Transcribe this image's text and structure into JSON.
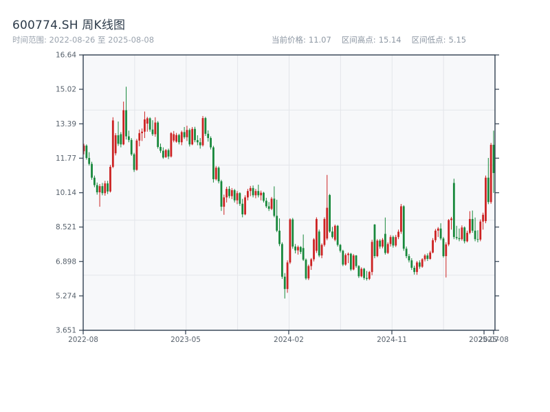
{
  "header": {
    "title": "600774.SH 周K线图",
    "subtitle": "时间范围: 2022-08-26 至 2025-08-08",
    "stats": [
      {
        "label": "当前价格:",
        "value": "11.07"
      },
      {
        "label": "区间高点:",
        "value": "15.14"
      },
      {
        "label": "区间低点:",
        "value": "5.15"
      }
    ]
  },
  "chart_data": {
    "type": "candlestick",
    "title": "600774.SH 周K线图",
    "symbol": "600774.SH",
    "frequency": "weekly",
    "date_range": {
      "start": "2022-08-26",
      "end": "2025-08-08"
    },
    "current_price": 11.07,
    "range_high": 15.14,
    "range_low": 5.15,
    "ylim": [
      3.651,
      16.64
    ],
    "y_ticks": [
      "16.64",
      "15.02",
      "13.39",
      "11.77",
      "10.14",
      "8.521",
      "6.898",
      "5.274",
      "3.651"
    ],
    "x_ticks": [
      {
        "label": "2022-08",
        "pos": 0.0
      },
      {
        "label": "2023-05",
        "pos": 0.2496
      },
      {
        "label": "2024-02",
        "pos": 0.5008
      },
      {
        "label": "2024-11",
        "pos": 0.7521
      },
      {
        "label": "2025-07",
        "pos": 0.9766
      },
      {
        "label": "2025-08",
        "pos": 1.0
      }
    ],
    "grid": {
      "v_divisions": 8,
      "h_divisions": 5,
      "shown": true
    },
    "colors": {
      "up": "#cc2222",
      "down": "#17883b",
      "border": "#2e3d4e",
      "grid": "#e3e5ea",
      "plot_bg": "#f7f8fa",
      "tick_label": "#57616c"
    },
    "ohlc_note": "weekly bars [open, high, low, close], up weeks drawn red, down weeks drawn green (CN convention)",
    "ohlc": [
      [
        12.1,
        12.45,
        11.95,
        12.36
      ],
      [
        12.36,
        12.42,
        11.7,
        11.78
      ],
      [
        11.78,
        12.05,
        11.42,
        11.5
      ],
      [
        11.5,
        11.6,
        10.75,
        10.85
      ],
      [
        10.85,
        10.95,
        10.4,
        10.5
      ],
      [
        10.5,
        10.62,
        10.05,
        10.16
      ],
      [
        10.16,
        10.55,
        9.48,
        10.45
      ],
      [
        10.45,
        10.6,
        10.02,
        10.12
      ],
      [
        10.12,
        10.7,
        10.0,
        10.58
      ],
      [
        10.58,
        10.7,
        10.08,
        10.2
      ],
      [
        10.2,
        11.45,
        10.15,
        11.36
      ],
      [
        11.36,
        13.7,
        11.3,
        13.55
      ],
      [
        12.0,
        12.95,
        11.9,
        12.85
      ],
      [
        12.85,
        13.5,
        12.35,
        12.45
      ],
      [
        12.9,
        13.0,
        12.28,
        12.42
      ],
      [
        12.42,
        14.44,
        12.38,
        14.03
      ],
      [
        14.03,
        15.14,
        12.65,
        12.8
      ],
      [
        12.8,
        13.07,
        12.52,
        12.63
      ],
      [
        12.63,
        12.72,
        11.88,
        11.95
      ],
      [
        11.95,
        12.02,
        11.12,
        11.22
      ],
      [
        11.22,
        12.68,
        11.18,
        12.6
      ],
      [
        12.6,
        13.12,
        12.33,
        12.95
      ],
      [
        12.95,
        13.17,
        12.58,
        13.02
      ],
      [
        13.02,
        13.97,
        12.72,
        13.6
      ],
      [
        13.4,
        13.72,
        13.02,
        13.65
      ],
      [
        13.65,
        13.7,
        13.02,
        13.12
      ],
      [
        13.12,
        13.56,
        12.82,
        12.9
      ],
      [
        12.9,
        13.7,
        12.78,
        13.45
      ],
      [
        13.45,
        13.52,
        12.22,
        12.3
      ],
      [
        12.3,
        12.46,
        12.02,
        12.12
      ],
      [
        12.12,
        12.28,
        11.74,
        11.8
      ],
      [
        11.82,
        12.2,
        11.78,
        12.15
      ],
      [
        12.15,
        12.22,
        11.73,
        11.85
      ],
      [
        11.85,
        13.0,
        11.8,
        12.95
      ],
      [
        12.6,
        13.05,
        12.52,
        12.9
      ],
      [
        12.55,
        12.96,
        12.5,
        12.86
      ],
      [
        12.86,
        12.92,
        12.42,
        12.52
      ],
      [
        12.52,
        13.07,
        12.38,
        13.0
      ],
      [
        13.0,
        13.24,
        12.68,
        12.76
      ],
      [
        12.76,
        13.3,
        12.58,
        13.1
      ],
      [
        13.1,
        13.18,
        12.32,
        12.42
      ],
      [
        12.42,
        13.24,
        12.38,
        13.15
      ],
      [
        13.15,
        13.25,
        12.52,
        12.62
      ],
      [
        12.62,
        12.85,
        12.38,
        12.52
      ],
      [
        12.52,
        12.72,
        12.22,
        12.38
      ],
      [
        12.38,
        13.76,
        12.32,
        13.66
      ],
      [
        13.66,
        13.72,
        12.82,
        12.92
      ],
      [
        12.92,
        13.08,
        12.55,
        12.72
      ],
      [
        12.72,
        12.8,
        12.18,
        12.28
      ],
      [
        12.28,
        12.35,
        10.62,
        10.78
      ],
      [
        10.78,
        11.4,
        10.72,
        11.32
      ],
      [
        11.32,
        11.38,
        10.58,
        10.68
      ],
      [
        10.68,
        10.75,
        9.28,
        9.48
      ],
      [
        9.48,
        10.05,
        9.1,
        9.92
      ],
      [
        9.92,
        10.42,
        9.68,
        10.32
      ],
      [
        10.32,
        10.45,
        9.88,
        9.98
      ],
      [
        9.98,
        10.36,
        9.84,
        10.26
      ],
      [
        10.26,
        10.32,
        9.68,
        9.78
      ],
      [
        9.78,
        10.22,
        9.6,
        10.12
      ],
      [
        10.12,
        10.16,
        9.52,
        9.62
      ],
      [
        9.62,
        9.85,
        8.98,
        9.12
      ],
      [
        9.12,
        10.02,
        9.08,
        9.92
      ],
      [
        9.92,
        10.32,
        9.78,
        10.22
      ],
      [
        10.22,
        10.46,
        9.98,
        10.36
      ],
      [
        10.36,
        10.48,
        9.92,
        10.02
      ],
      [
        10.02,
        10.32,
        9.88,
        10.22
      ],
      [
        10.22,
        10.52,
        9.92,
        10.02
      ],
      [
        10.02,
        10.24,
        9.78,
        10.14
      ],
      [
        10.14,
        10.18,
        9.68,
        9.76
      ],
      [
        9.76,
        9.9,
        9.42,
        9.5
      ],
      [
        9.5,
        9.7,
        9.28,
        9.38
      ],
      [
        9.38,
        9.94,
        9.32,
        9.86
      ],
      [
        9.86,
        10.44,
        8.98,
        9.05
      ],
      [
        9.05,
        9.81,
        8.28,
        8.35
      ],
      [
        8.35,
        8.93,
        7.62,
        7.72
      ],
      [
        7.72,
        7.8,
        6.08,
        6.18
      ],
      [
        6.18,
        6.35,
        5.15,
        5.6
      ],
      [
        5.6,
        6.95,
        5.42,
        6.85
      ],
      [
        6.85,
        8.93,
        6.78,
        8.88
      ],
      [
        8.88,
        8.95,
        7.5,
        7.6
      ],
      [
        7.6,
        7.72,
        7.28,
        7.42
      ],
      [
        7.42,
        7.65,
        7.22,
        7.58
      ],
      [
        7.58,
        7.62,
        7.25,
        7.35
      ],
      [
        7.53,
        8.17,
        6.92,
        6.98
      ],
      [
        6.98,
        7.04,
        6.03,
        6.1
      ],
      [
        6.1,
        6.75,
        6.02,
        6.68
      ],
      [
        6.68,
        7.06,
        6.5,
        7.0
      ],
      [
        7.0,
        8.0,
        6.9,
        7.94
      ],
      [
        7.4,
        8.98,
        7.3,
        8.9
      ],
      [
        8.31,
        8.4,
        7.1,
        7.18
      ],
      [
        7.18,
        7.75,
        7.05,
        7.68
      ],
      [
        7.68,
        8.98,
        7.6,
        8.9
      ],
      [
        7.98,
        10.98,
        7.9,
        9.43
      ],
      [
        10.03,
        10.08,
        8.25,
        8.31
      ],
      [
        8.31,
        8.53,
        7.98,
        8.05
      ],
      [
        7.92,
        8.64,
        7.85,
        8.58
      ],
      [
        8.58,
        8.62,
        7.6,
        7.68
      ],
      [
        7.68,
        7.72,
        7.32,
        7.4
      ],
      [
        7.4,
        7.45,
        6.68,
        6.75
      ],
      [
        6.75,
        7.28,
        6.7,
        7.2
      ],
      [
        7.2,
        7.32,
        6.82,
        7.26
      ],
      [
        7.26,
        7.3,
        6.45,
        6.52
      ],
      [
        6.52,
        7.25,
        6.48,
        7.18
      ],
      [
        7.18,
        7.2,
        6.6,
        6.68
      ],
      [
        6.68,
        6.72,
        6.12,
        6.2
      ],
      [
        6.2,
        6.62,
        6.15,
        6.55
      ],
      [
        6.55,
        6.6,
        6.03,
        6.12
      ],
      [
        6.12,
        6.45,
        6.0,
        6.08
      ],
      [
        6.08,
        6.45,
        6.02,
        6.4
      ],
      [
        6.4,
        7.92,
        6.25,
        7.82
      ],
      [
        8.64,
        8.66,
        7.05,
        7.15
      ],
      [
        7.15,
        7.95,
        7.1,
        7.88
      ],
      [
        7.88,
        7.95,
        7.5,
        7.6
      ],
      [
        7.6,
        8.0,
        7.52,
        7.92
      ],
      [
        8.2,
        8.97,
        7.22,
        7.3
      ],
      [
        7.3,
        7.8,
        7.25,
        7.72
      ],
      [
        7.72,
        8.14,
        7.6,
        8.05
      ],
      [
        8.05,
        8.12,
        7.55,
        7.65
      ],
      [
        7.65,
        8.15,
        7.58,
        8.05
      ],
      [
        8.05,
        8.4,
        7.95,
        8.3
      ],
      [
        8.3,
        9.61,
        8.2,
        9.5
      ],
      [
        9.5,
        9.55,
        7.4,
        7.5
      ],
      [
        7.5,
        7.6,
        7.05,
        7.15
      ],
      [
        7.15,
        7.25,
        6.85,
        6.95
      ],
      [
        6.95,
        7.05,
        6.5,
        6.6
      ],
      [
        6.6,
        6.7,
        6.28,
        6.4
      ],
      [
        6.4,
        6.92,
        6.27,
        6.85
      ],
      [
        6.85,
        6.95,
        6.55,
        6.65
      ],
      [
        6.65,
        7.05,
        6.6,
        7.0
      ],
      [
        7.0,
        7.25,
        6.9,
        7.18
      ],
      [
        7.18,
        7.28,
        6.92,
        7.02
      ],
      [
        7.02,
        7.4,
        6.98,
        7.32
      ],
      [
        7.32,
        8.0,
        7.28,
        7.9
      ],
      [
        7.9,
        8.43,
        7.8,
        8.35
      ],
      [
        8.35,
        8.52,
        8.05,
        8.45
      ],
      [
        8.45,
        8.7,
        7.9,
        7.98
      ],
      [
        7.98,
        8.05,
        7.08,
        7.15
      ],
      [
        7.15,
        7.8,
        6.14,
        7.7
      ],
      [
        7.7,
        8.9,
        7.62,
        8.85
      ],
      [
        8.85,
        9.0,
        8.4,
        8.92
      ],
      [
        10.6,
        10.8,
        7.95,
        8.05
      ],
      [
        8.05,
        8.58,
        7.92,
        8.0
      ],
      [
        8.0,
        8.45,
        7.85,
        7.95
      ],
      [
        7.95,
        8.6,
        7.88,
        8.5
      ],
      [
        8.5,
        8.55,
        7.75,
        7.85
      ],
      [
        7.85,
        8.35,
        7.8,
        8.25
      ],
      [
        8.25,
        9.27,
        8.18,
        8.9
      ],
      [
        8.9,
        9.3,
        8.25,
        8.35
      ],
      [
        8.35,
        8.97,
        7.85,
        7.95
      ],
      [
        7.95,
        8.37,
        7.8,
        7.93
      ],
      [
        7.93,
        8.88,
        7.85,
        8.78
      ],
      [
        8.78,
        9.2,
        8.4,
        9.1
      ],
      [
        8.8,
        10.95,
        8.7,
        10.85
      ],
      [
        10.85,
        11.78,
        9.6,
        9.7
      ],
      [
        9.7,
        12.49,
        9.62,
        12.4
      ],
      [
        12.4,
        13.07,
        10.13,
        11.07
      ]
    ]
  }
}
